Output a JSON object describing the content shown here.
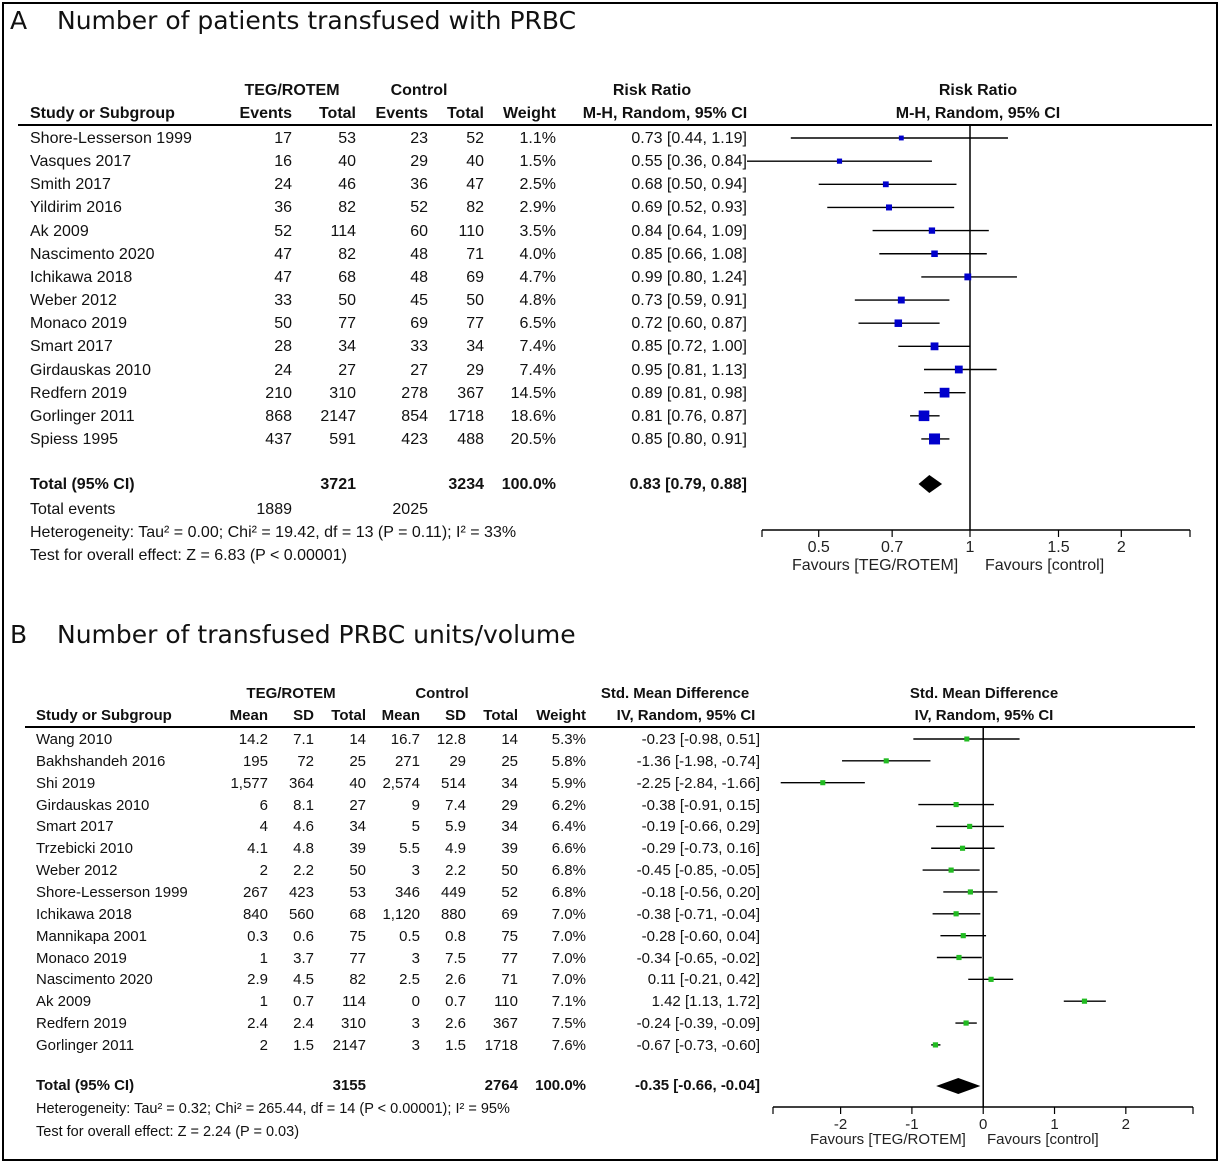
{
  "panels": [
    {
      "label": "A",
      "title": "Number of patients transfused with PRBC",
      "headers": {
        "group_exp": "TEG/ROTEM",
        "group_ctrl": "Control",
        "study": "Study or Subgroup",
        "events": "Events",
        "total": "Total",
        "weight": "Weight",
        "effect_top": "Risk Ratio",
        "effect_method": "M-H, Random, 95% CI",
        "plot_top": "Risk Ratio",
        "plot_method": "M-H, Random, 95% CI"
      },
      "rows": [
        {
          "study": "Shore-Lesserson 1999",
          "e1": "17",
          "t1": "53",
          "e2": "23",
          "t2": "52",
          "weight": "1.1%",
          "ci_text": "0.73 [0.44, 1.19]"
        },
        {
          "study": "Vasques 2017",
          "e1": "16",
          "t1": "40",
          "e2": "29",
          "t2": "40",
          "weight": "1.5%",
          "ci_text": "0.55 [0.36, 0.84]"
        },
        {
          "study": "Smith 2017",
          "e1": "24",
          "t1": "46",
          "e2": "36",
          "t2": "47",
          "weight": "2.5%",
          "ci_text": "0.68 [0.50, 0.94]"
        },
        {
          "study": "Yildirim 2016",
          "e1": "36",
          "t1": "82",
          "e2": "52",
          "t2": "82",
          "weight": "2.9%",
          "ci_text": "0.69 [0.52, 0.93]"
        },
        {
          "study": "Ak 2009",
          "e1": "52",
          "t1": "114",
          "e2": "60",
          "t2": "110",
          "weight": "3.5%",
          "ci_text": "0.84 [0.64, 1.09]"
        },
        {
          "study": "Nascimento 2020",
          "e1": "47",
          "t1": "82",
          "e2": "48",
          "t2": "71",
          "weight": "4.0%",
          "ci_text": "0.85 [0.66, 1.08]"
        },
        {
          "study": "Ichikawa 2018",
          "e1": "47",
          "t1": "68",
          "e2": "48",
          "t2": "69",
          "weight": "4.7%",
          "ci_text": "0.99 [0.80, 1.24]"
        },
        {
          "study": "Weber 2012",
          "e1": "33",
          "t1": "50",
          "e2": "45",
          "t2": "50",
          "weight": "4.8%",
          "ci_text": "0.73 [0.59, 0.91]"
        },
        {
          "study": "Monaco 2019",
          "e1": "50",
          "t1": "77",
          "e2": "69",
          "t2": "77",
          "weight": "6.5%",
          "ci_text": "0.72 [0.60, 0.87]"
        },
        {
          "study": "Smart 2017",
          "e1": "28",
          "t1": "34",
          "e2": "33",
          "t2": "34",
          "weight": "7.4%",
          "ci_text": "0.85 [0.72, 1.00]"
        },
        {
          "study": "Girdauskas 2010",
          "e1": "24",
          "t1": "27",
          "e2": "27",
          "t2": "29",
          "weight": "7.4%",
          "ci_text": "0.95 [0.81, 1.13]"
        },
        {
          "study": "Redfern 2019",
          "e1": "210",
          "t1": "310",
          "e2": "278",
          "t2": "367",
          "weight": "14.5%",
          "ci_text": "0.89 [0.81, 0.98]"
        },
        {
          "study": "Gorlinger 2011",
          "e1": "868",
          "t1": "2147",
          "e2": "854",
          "t2": "1718",
          "weight": "18.6%",
          "ci_text": "0.81 [0.76, 0.87]"
        },
        {
          "study": "Spiess 1995",
          "e1": "437",
          "t1": "591",
          "e2": "423",
          "t2": "488",
          "weight": "20.5%",
          "ci_text": "0.85 [0.80, 0.91]"
        }
      ],
      "total": {
        "label": "Total (95% CI)",
        "t1": "3721",
        "t2": "3234",
        "weight": "100.0%",
        "ci_text": "0.83 [0.79, 0.88]"
      },
      "total_events": {
        "label": "Total events",
        "e1": "1889",
        "e2": "2025"
      },
      "heterogeneity": "Heterogeneity: Tau² = 0.00; Chi² = 19.42, df = 13 (P = 0.11); I² = 33%",
      "overall": "Test for overall effect: Z = 6.83 (P < 0.00001)",
      "favours_left": "Favours [TEG/ROTEM]",
      "favours_right": "Favours [control]",
      "marker_color": "#0000cc"
    },
    {
      "label": "B",
      "title": "Number of transfused PRBC units/volume",
      "headers": {
        "group_exp": "TEG/ROTEM",
        "group_ctrl": "Control",
        "study": "Study or Subgroup",
        "mean": "Mean",
        "sd": "SD",
        "total": "Total",
        "weight": "Weight",
        "effect_top": "Std. Mean Difference",
        "effect_method": "IV, Random, 95% CI",
        "plot_top": "Std. Mean Difference",
        "plot_method": "IV, Random, 95% CI"
      },
      "rows": [
        {
          "study": "Wang 2010",
          "m1": "14.2",
          "s1": "7.1",
          "t1": "14",
          "m2": "16.7",
          "s2": "12.8",
          "t2": "14",
          "weight": "5.3%",
          "ci_text": "-0.23 [-0.98, 0.51]"
        },
        {
          "study": "Bakhshandeh 2016",
          "m1": "195",
          "s1": "72",
          "t1": "25",
          "m2": "271",
          "s2": "29",
          "t2": "25",
          "weight": "5.8%",
          "ci_text": "-1.36 [-1.98, -0.74]"
        },
        {
          "study": "Shi 2019",
          "m1": "1,577",
          "s1": "364",
          "t1": "40",
          "m2": "2,574",
          "s2": "514",
          "t2": "34",
          "weight": "5.9%",
          "ci_text": "-2.25 [-2.84, -1.66]"
        },
        {
          "study": "Girdauskas 2010",
          "m1": "6",
          "s1": "8.1",
          "t1": "27",
          "m2": "9",
          "s2": "7.4",
          "t2": "29",
          "weight": "6.2%",
          "ci_text": "-0.38 [-0.91, 0.15]"
        },
        {
          "study": "Smart 2017",
          "m1": "4",
          "s1": "4.6",
          "t1": "34",
          "m2": "5",
          "s2": "5.9",
          "t2": "34",
          "weight": "6.4%",
          "ci_text": "-0.19 [-0.66, 0.29]"
        },
        {
          "study": "Trzebicki 2010",
          "m1": "4.1",
          "s1": "4.8",
          "t1": "39",
          "m2": "5.5",
          "s2": "4.9",
          "t2": "39",
          "weight": "6.6%",
          "ci_text": "-0.29 [-0.73, 0.16]"
        },
        {
          "study": "Weber 2012",
          "m1": "2",
          "s1": "2.2",
          "t1": "50",
          "m2": "3",
          "s2": "2.2",
          "t2": "50",
          "weight": "6.8%",
          "ci_text": "-0.45 [-0.85, -0.05]"
        },
        {
          "study": "Shore-Lesserson 1999",
          "m1": "267",
          "s1": "423",
          "t1": "53",
          "m2": "346",
          "s2": "449",
          "t2": "52",
          "weight": "6.8%",
          "ci_text": "-0.18 [-0.56, 0.20]"
        },
        {
          "study": "Ichikawa 2018",
          "m1": "840",
          "s1": "560",
          "t1": "68",
          "m2": "1,120",
          "s2": "880",
          "t2": "69",
          "weight": "7.0%",
          "ci_text": "-0.38 [-0.71, -0.04]"
        },
        {
          "study": "Mannikapa 2001",
          "m1": "0.3",
          "s1": "0.6",
          "t1": "75",
          "m2": "0.5",
          "s2": "0.8",
          "t2": "75",
          "weight": "7.0%",
          "ci_text": "-0.28 [-0.60, 0.04]"
        },
        {
          "study": "Monaco 2019",
          "m1": "1",
          "s1": "3.7",
          "t1": "77",
          "m2": "3",
          "s2": "7.5",
          "t2": "77",
          "weight": "7.0%",
          "ci_text": "-0.34 [-0.65, -0.02]"
        },
        {
          "study": "Nascimento 2020",
          "m1": "2.9",
          "s1": "4.5",
          "t1": "82",
          "m2": "2.5",
          "s2": "2.6",
          "t2": "71",
          "weight": "7.0%",
          "ci_text": "0.11 [-0.21, 0.42]"
        },
        {
          "study": "Ak 2009",
          "m1": "1",
          "s1": "0.7",
          "t1": "114",
          "m2": "0",
          "s2": "0.7",
          "t2": "110",
          "weight": "7.1%",
          "ci_text": "1.42 [1.13, 1.72]"
        },
        {
          "study": "Redfern 2019",
          "m1": "2.4",
          "s1": "2.4",
          "t1": "310",
          "m2": "3",
          "s2": "2.6",
          "t2": "367",
          "weight": "7.5%",
          "ci_text": "-0.24 [-0.39, -0.09]"
        },
        {
          "study": "Gorlinger 2011",
          "m1": "2",
          "s1": "1.5",
          "t1": "2147",
          "m2": "3",
          "s2": "1.5",
          "t2": "1718",
          "weight": "7.6%",
          "ci_text": "-0.67 [-0.73, -0.60]"
        }
      ],
      "total": {
        "label": "Total (95% CI)",
        "t1": "3155",
        "t2": "2764",
        "weight": "100.0%",
        "ci_text": "-0.35 [-0.66, -0.04]"
      },
      "heterogeneity": "Heterogeneity: Tau² = 0.32; Chi² = 265.44, df = 14 (P < 0.00001); I² = 95%",
      "overall": "Test for overall effect: Z = 2.24 (P = 0.03)",
      "favours_left": "Favours [TEG/ROTEM]",
      "favours_right": "Favours [control]",
      "marker_color": "#22bb22"
    }
  ],
  "chart_data": [
    {
      "type": "forest",
      "title": "Number of patients transfused with PRBC",
      "scale": "log",
      "xlim": [
        0.4,
        2.5
      ],
      "ticks": [
        0.5,
        0.7,
        1,
        1.5,
        2
      ],
      "tick_labels": [
        "0.5",
        "0.7",
        "1",
        "1.5",
        "2"
      ],
      "null_value": 1,
      "estimates": [
        0.73,
        0.55,
        0.68,
        0.69,
        0.84,
        0.85,
        0.99,
        0.73,
        0.72,
        0.85,
        0.95,
        0.89,
        0.81,
        0.85
      ],
      "lower": [
        0.44,
        0.36,
        0.5,
        0.52,
        0.64,
        0.66,
        0.8,
        0.59,
        0.6,
        0.72,
        0.81,
        0.81,
        0.76,
        0.8
      ],
      "upper": [
        1.19,
        0.84,
        0.94,
        0.93,
        1.09,
        1.08,
        1.24,
        0.91,
        0.87,
        1.0,
        1.13,
        0.98,
        0.87,
        0.91
      ],
      "weights": [
        1.1,
        1.5,
        2.5,
        2.9,
        3.5,
        4.0,
        4.7,
        4.8,
        6.5,
        7.4,
        7.4,
        14.5,
        18.6,
        20.5
      ],
      "pooled": {
        "estimate": 0.83,
        "lower": 0.79,
        "upper": 0.88
      }
    },
    {
      "type": "forest",
      "title": "Number of transfused PRBC units/volume",
      "scale": "linear",
      "xlim": [
        -2.85,
        2.9
      ],
      "ticks": [
        -2,
        -1,
        0,
        1,
        2
      ],
      "tick_labels": [
        "-2",
        "-1",
        "0",
        "1",
        "2"
      ],
      "null_value": 0,
      "estimates": [
        -0.23,
        -1.36,
        -2.25,
        -0.38,
        -0.19,
        -0.29,
        -0.45,
        -0.18,
        -0.38,
        -0.28,
        -0.34,
        0.11,
        1.42,
        -0.24,
        -0.67
      ],
      "lower": [
        -0.98,
        -1.98,
        -2.84,
        -0.91,
        -0.66,
        -0.73,
        -0.85,
        -0.56,
        -0.71,
        -0.6,
        -0.65,
        -0.21,
        1.13,
        -0.39,
        -0.73
      ],
      "upper": [
        0.51,
        -0.74,
        -1.66,
        0.15,
        0.29,
        0.16,
        -0.05,
        0.2,
        -0.04,
        0.04,
        -0.02,
        0.42,
        1.72,
        -0.09,
        -0.6
      ],
      "weights": [
        5.3,
        5.8,
        5.9,
        6.2,
        6.4,
        6.6,
        6.8,
        6.8,
        7.0,
        7.0,
        7.0,
        7.0,
        7.1,
        7.5,
        7.6
      ],
      "pooled": {
        "estimate": -0.35,
        "lower": -0.66,
        "upper": -0.04
      }
    }
  ]
}
